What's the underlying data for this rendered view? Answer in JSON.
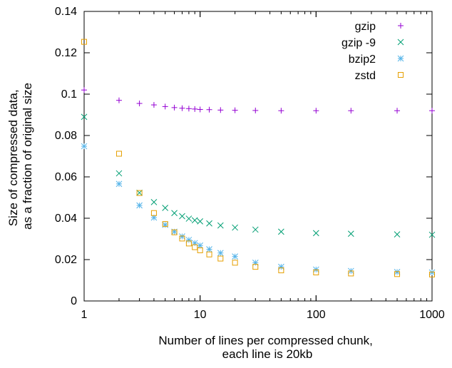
{
  "chart_data": {
    "type": "scatter",
    "x_scale": "log",
    "xlim": [
      1,
      1000
    ],
    "ylim": [
      0,
      0.14
    ],
    "x_ticks": [
      1,
      10,
      100,
      1000
    ],
    "x_tick_labels": [
      "1",
      "10",
      "100",
      "1000"
    ],
    "y_ticks": [
      0,
      0.02,
      0.04,
      0.06,
      0.08,
      0.1,
      0.12,
      0.14
    ],
    "y_tick_labels": [
      "0",
      "0.02",
      "0.04",
      "0.06",
      "0.08",
      "0.1",
      "0.12",
      "0.14"
    ],
    "xlabel": [
      "Number of lines per compressed chunk,",
      "each line is 20kb"
    ],
    "ylabel": [
      "Size of compressed data,",
      "as a fraction of original size"
    ],
    "legend_position": "top-right",
    "grid": false,
    "series": [
      {
        "name": "gzip",
        "marker": "plus",
        "color": "#9400d3",
        "x": [
          1,
          2,
          3,
          4,
          5,
          6,
          7,
          8,
          9,
          10,
          12,
          15,
          20,
          30,
          50,
          100,
          200,
          500,
          1000
        ],
        "y": [
          0.102,
          0.097,
          0.0955,
          0.0948,
          0.094,
          0.0935,
          0.0932,
          0.093,
          0.0928,
          0.0926,
          0.0925,
          0.0923,
          0.0922,
          0.0921,
          0.092,
          0.092,
          0.092,
          0.092,
          0.092
        ]
      },
      {
        "name": "gzip -9",
        "marker": "cross",
        "color": "#009e73",
        "x": [
          1,
          2,
          3,
          4,
          5,
          6,
          7,
          8,
          9,
          10,
          12,
          15,
          20,
          30,
          50,
          100,
          200,
          500,
          1000
        ],
        "y": [
          0.089,
          0.0617,
          0.0523,
          0.0478,
          0.045,
          0.0425,
          0.041,
          0.0398,
          0.039,
          0.0385,
          0.0375,
          0.0365,
          0.0355,
          0.0345,
          0.0335,
          0.0328,
          0.0325,
          0.0322,
          0.032
        ]
      },
      {
        "name": "bzip2",
        "marker": "star",
        "color": "#56b4e9",
        "x": [
          1,
          2,
          3,
          4,
          5,
          6,
          7,
          8,
          9,
          10,
          12,
          15,
          20,
          30,
          50,
          100,
          200,
          500,
          1000
        ],
        "y": [
          0.0748,
          0.0566,
          0.0462,
          0.0403,
          0.0368,
          0.0335,
          0.0312,
          0.0295,
          0.028,
          0.0268,
          0.025,
          0.0232,
          0.0215,
          0.0185,
          0.0165,
          0.0152,
          0.0145,
          0.014,
          0.0138
        ]
      },
      {
        "name": "zstd",
        "marker": "square",
        "color": "#e69f00",
        "x": [
          1,
          2,
          3,
          4,
          5,
          6,
          7,
          8,
          9,
          10,
          12,
          15,
          20,
          30,
          50,
          100,
          200,
          500,
          1000
        ],
        "y": [
          0.1253,
          0.0712,
          0.0522,
          0.0425,
          0.0372,
          0.0332,
          0.0302,
          0.0278,
          0.026,
          0.0245,
          0.0225,
          0.0205,
          0.0185,
          0.0165,
          0.0148,
          0.0138,
          0.0133,
          0.013,
          0.0128
        ]
      }
    ]
  }
}
